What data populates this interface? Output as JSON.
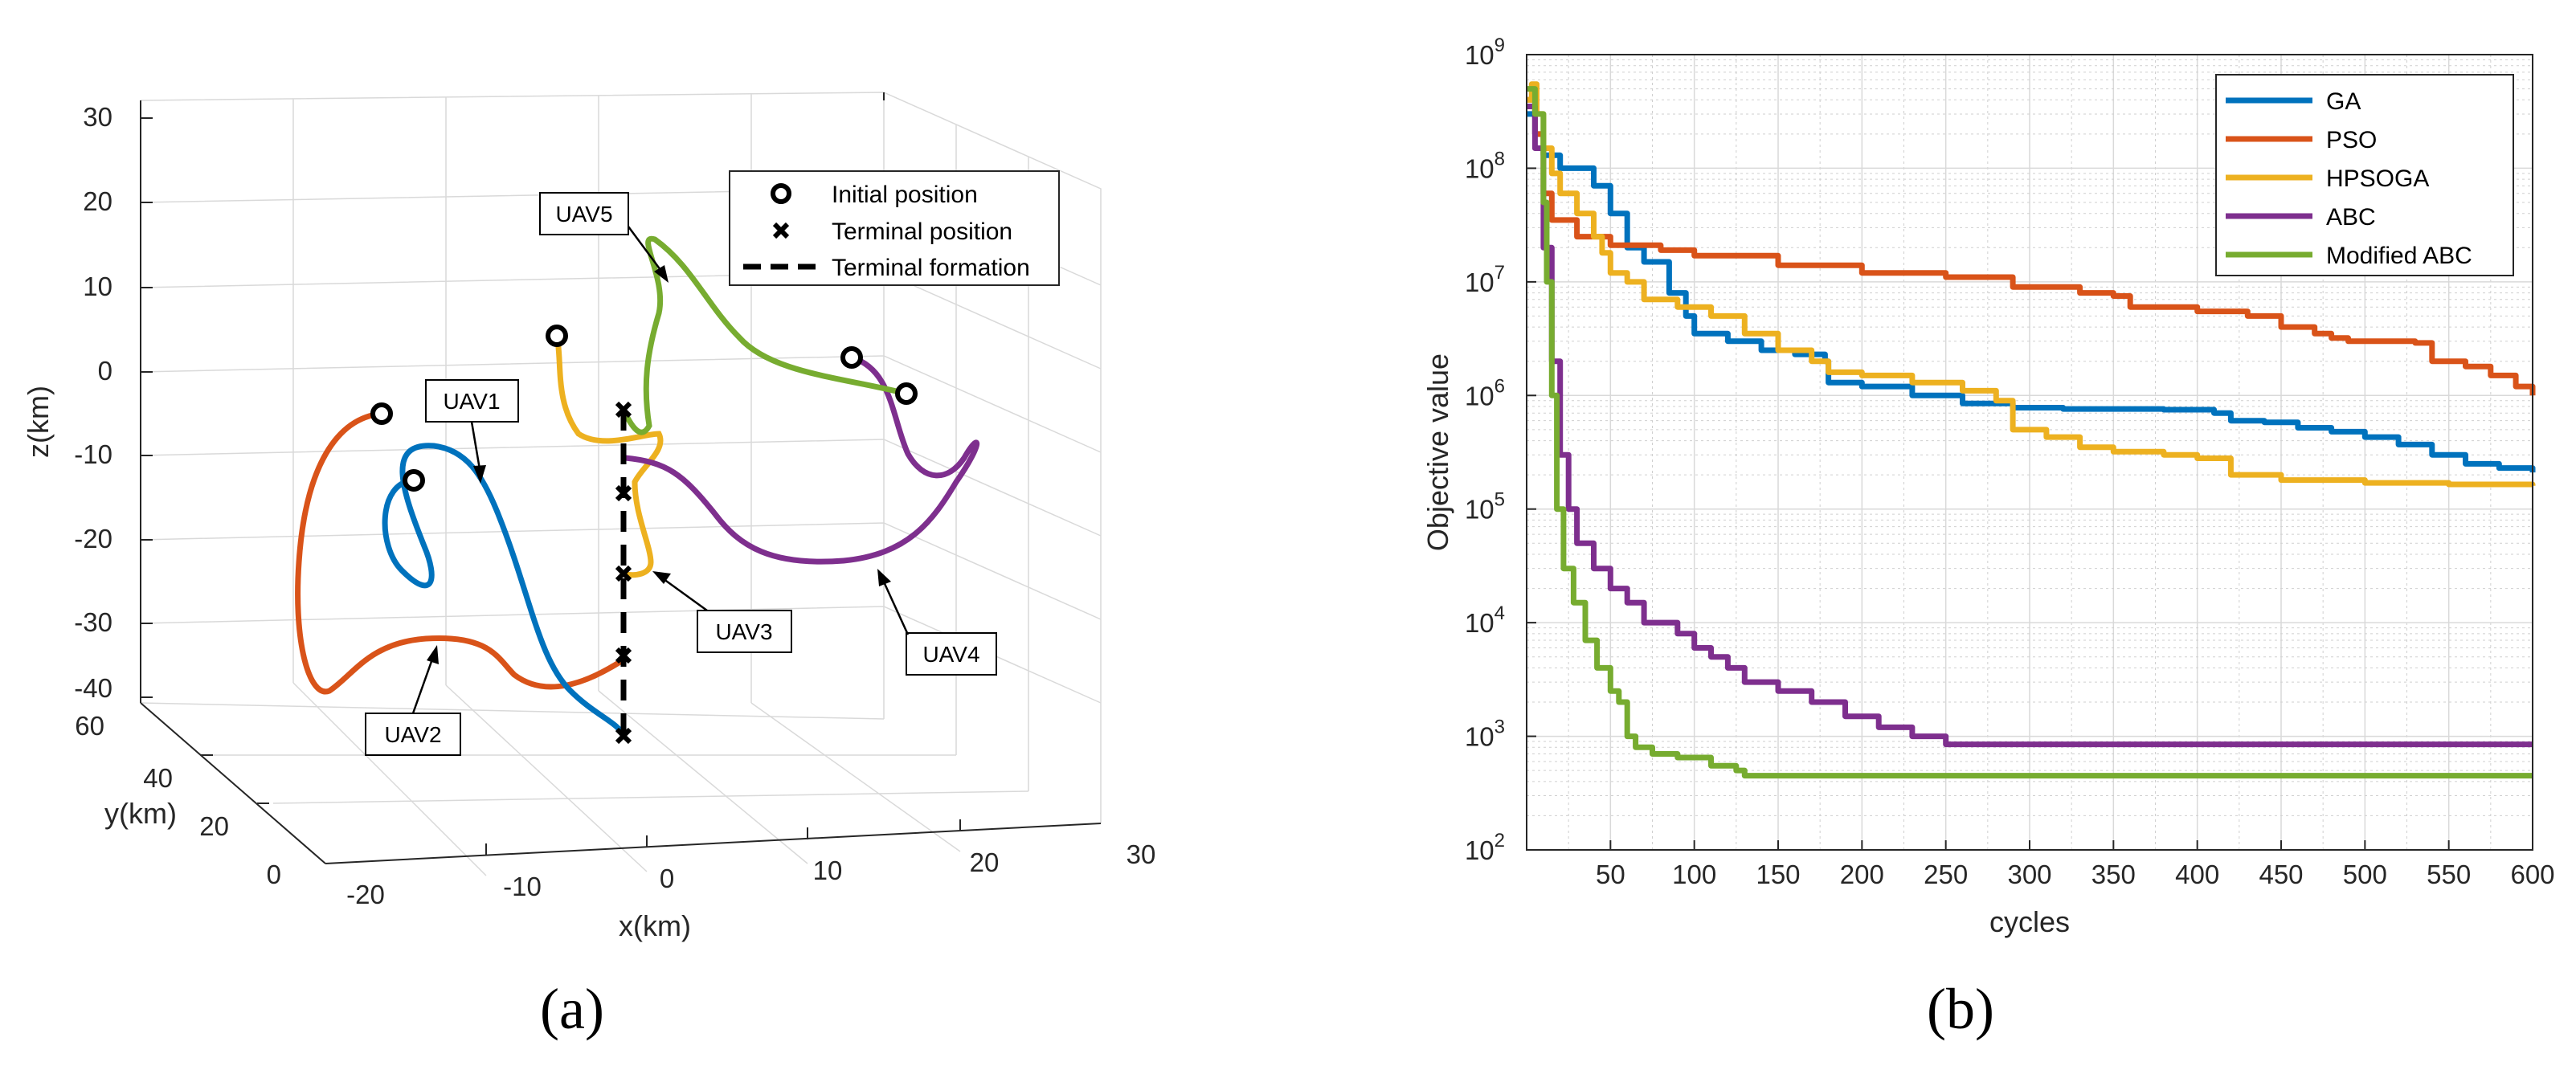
{
  "panel_a": {
    "caption": "(a)",
    "xlabel": "x(km)",
    "ylabel": "y(km)",
    "zlabel": "z(km)",
    "x_ticks": [
      "-20",
      "-10",
      "0",
      "10",
      "20",
      "30"
    ],
    "y_ticks": [
      "0",
      "20",
      "40",
      "60"
    ],
    "z_ticks": [
      "30",
      "20",
      "10",
      "0",
      "-10",
      "-20",
      "-30",
      "-40"
    ],
    "legend": {
      "initial": "Initial position",
      "terminal": "Terminal position",
      "formation": "Terminal formation"
    },
    "labels": [
      "UAV1",
      "UAV2",
      "UAV3",
      "UAV4",
      "UAV5"
    ],
    "colors": {
      "UAV1": "#0072BD",
      "UAV2": "#D95319",
      "UAV3": "#EDB120",
      "UAV4": "#7E2F8E",
      "UAV5": "#77AC30"
    }
  },
  "chart_data": {
    "type": "line",
    "title": "",
    "caption": "(b)",
    "xlabel": "cycles",
    "ylabel": "Objective value",
    "xlim": [
      0,
      600
    ],
    "ylim": [
      100,
      1000000000
    ],
    "yscale": "log",
    "x_ticks": [
      "50",
      "100",
      "150",
      "200",
      "250",
      "300",
      "350",
      "400",
      "450",
      "500",
      "550",
      "600"
    ],
    "y_ticks": [
      "10^2",
      "10^3",
      "10^4",
      "10^5",
      "10^6",
      "10^7",
      "10^8",
      "10^9"
    ],
    "legend_position": "top-right",
    "series": [
      {
        "name": "GA",
        "color": "#0072BD",
        "points": [
          [
            0,
            300000000
          ],
          [
            5,
            200000000
          ],
          [
            10,
            130000000
          ],
          [
            20,
            100000000
          ],
          [
            40,
            70000000
          ],
          [
            50,
            40000000
          ],
          [
            60,
            20000000
          ],
          [
            70,
            15000000
          ],
          [
            85,
            8000000
          ],
          [
            95,
            5000000
          ],
          [
            100,
            3500000
          ],
          [
            120,
            3000000
          ],
          [
            140,
            2500000
          ],
          [
            160,
            2300000
          ],
          [
            178,
            2000000
          ],
          [
            180,
            1300000
          ],
          [
            200,
            1200000
          ],
          [
            230,
            1000000
          ],
          [
            260,
            850000
          ],
          [
            290,
            780000
          ],
          [
            320,
            760000
          ],
          [
            380,
            750000
          ],
          [
            410,
            700000
          ],
          [
            420,
            600000
          ],
          [
            440,
            580000
          ],
          [
            460,
            520000
          ],
          [
            480,
            480000
          ],
          [
            500,
            430000
          ],
          [
            520,
            370000
          ],
          [
            540,
            300000
          ],
          [
            560,
            250000
          ],
          [
            580,
            230000
          ],
          [
            600,
            210000
          ]
        ]
      },
      {
        "name": "PSO",
        "color": "#D95319",
        "points": [
          [
            0,
            400000000
          ],
          [
            5,
            200000000
          ],
          [
            10,
            60000000
          ],
          [
            15,
            35000000
          ],
          [
            30,
            25000000
          ],
          [
            50,
            21000000
          ],
          [
            80,
            19000000
          ],
          [
            100,
            17000000
          ],
          [
            150,
            14000000
          ],
          [
            200,
            12000000
          ],
          [
            250,
            11000000
          ],
          [
            290,
            9000000
          ],
          [
            330,
            8000000
          ],
          [
            350,
            7500000
          ],
          [
            360,
            6000000
          ],
          [
            400,
            5500000
          ],
          [
            430,
            5000000
          ],
          [
            450,
            4000000
          ],
          [
            470,
            3500000
          ],
          [
            480,
            3200000
          ],
          [
            490,
            3000000
          ],
          [
            530,
            2900000
          ],
          [
            540,
            2000000
          ],
          [
            560,
            1800000
          ],
          [
            575,
            1500000
          ],
          [
            590,
            1200000
          ],
          [
            600,
            1000000
          ]
        ]
      },
      {
        "name": "HPSOGA",
        "color": "#EDB120",
        "points": [
          [
            0,
            400000000
          ],
          [
            3,
            550000000
          ],
          [
            6,
            300000000
          ],
          [
            10,
            150000000
          ],
          [
            15,
            90000000
          ],
          [
            20,
            60000000
          ],
          [
            30,
            40000000
          ],
          [
            40,
            25000000
          ],
          [
            45,
            18000000
          ],
          [
            50,
            12000000
          ],
          [
            60,
            10000000
          ],
          [
            70,
            7000000
          ],
          [
            90,
            6000000
          ],
          [
            110,
            5000000
          ],
          [
            130,
            3500000
          ],
          [
            150,
            2500000
          ],
          [
            170,
            2000000
          ],
          [
            180,
            1600000
          ],
          [
            200,
            1500000
          ],
          [
            230,
            1300000
          ],
          [
            260,
            1100000
          ],
          [
            280,
            900000
          ],
          [
            290,
            500000
          ],
          [
            310,
            430000
          ],
          [
            330,
            350000
          ],
          [
            350,
            320000
          ],
          [
            380,
            300000
          ],
          [
            400,
            280000
          ],
          [
            420,
            200000
          ],
          [
            450,
            180000
          ],
          [
            500,
            170000
          ],
          [
            550,
            165000
          ],
          [
            600,
            160000
          ]
        ]
      },
      {
        "name": "ABC",
        "color": "#7E2F8E",
        "points": [
          [
            0,
            350000000
          ],
          [
            5,
            150000000
          ],
          [
            10,
            20000000
          ],
          [
            15,
            2000000
          ],
          [
            20,
            300000
          ],
          [
            25,
            100000
          ],
          [
            30,
            50000
          ],
          [
            40,
            30000
          ],
          [
            50,
            20000
          ],
          [
            60,
            15000
          ],
          [
            70,
            10000
          ],
          [
            90,
            8000
          ],
          [
            100,
            6000
          ],
          [
            110,
            5000
          ],
          [
            120,
            4000
          ],
          [
            130,
            3000
          ],
          [
            150,
            2500
          ],
          [
            170,
            2000
          ],
          [
            190,
            1500
          ],
          [
            210,
            1200
          ],
          [
            230,
            1000
          ],
          [
            250,
            850
          ],
          [
            300,
            850
          ],
          [
            400,
            850
          ],
          [
            500,
            850
          ],
          [
            600,
            850
          ]
        ]
      },
      {
        "name": "Modified ABC",
        "color": "#77AC30",
        "points": [
          [
            0,
            500000000
          ],
          [
            5,
            300000000
          ],
          [
            10,
            50000000
          ],
          [
            12,
            10000000
          ],
          [
            15,
            1000000
          ],
          [
            18,
            100000
          ],
          [
            22,
            30000
          ],
          [
            28,
            15000
          ],
          [
            35,
            7000
          ],
          [
            42,
            4000
          ],
          [
            50,
            2500
          ],
          [
            55,
            2000
          ],
          [
            60,
            1000
          ],
          [
            65,
            800
          ],
          [
            75,
            700
          ],
          [
            90,
            650
          ],
          [
            110,
            550
          ],
          [
            125,
            500
          ],
          [
            130,
            450
          ],
          [
            200,
            450
          ],
          [
            300,
            450
          ],
          [
            400,
            450
          ],
          [
            500,
            450
          ],
          [
            600,
            450
          ]
        ]
      }
    ]
  }
}
